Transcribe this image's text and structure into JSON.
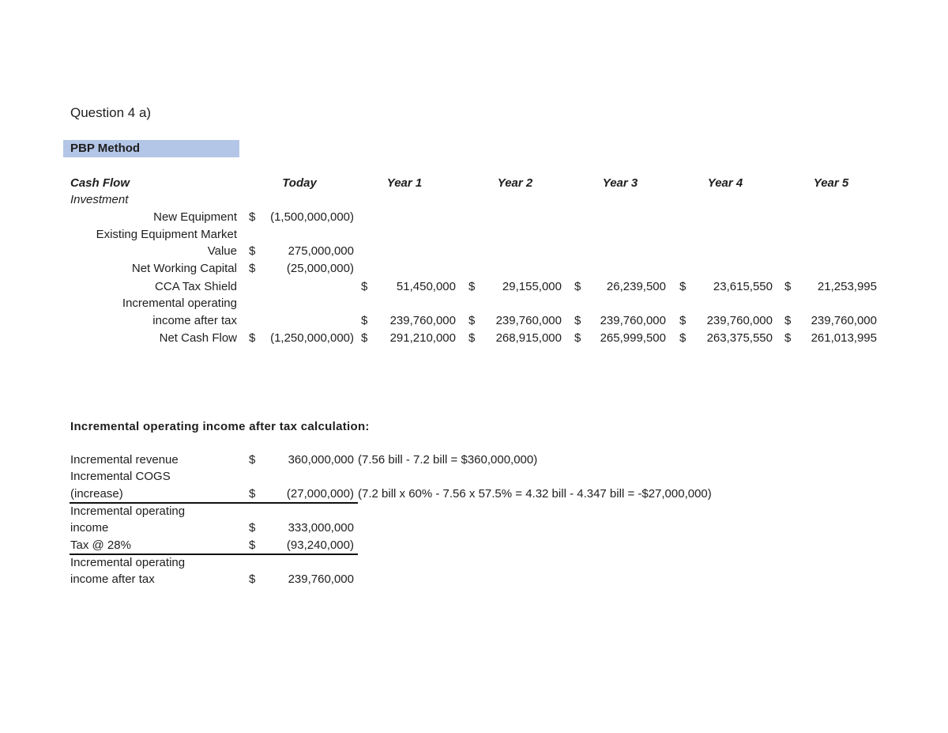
{
  "title": "Question 4 a)",
  "section": "PBP Method",
  "cash_flow": {
    "headers": [
      "Cash Flow",
      "Today",
      "Year 1",
      "Year 2",
      "Year 3",
      "Year 4",
      "Year 5"
    ],
    "group_label": "Investment",
    "rows": [
      {
        "label": [
          "New Equipment"
        ],
        "cells": [
          [
            "$",
            "(1,500,000,000)"
          ]
        ]
      },
      {
        "label": [
          "Existing Equipment Market",
          "Value"
        ],
        "cells": [
          [
            "$",
            "275,000,000"
          ]
        ]
      },
      {
        "label": [
          "Net Working Capital"
        ],
        "cells": [
          [
            "$",
            "(25,000,000)"
          ]
        ]
      },
      {
        "label": [
          "CCA Tax Shield"
        ],
        "cells": [
          null,
          [
            "$",
            "51,450,000"
          ],
          [
            "$",
            "29,155,000"
          ],
          [
            "$",
            "26,239,500"
          ],
          [
            "$",
            "23,615,550"
          ],
          [
            "$",
            "21,253,995"
          ]
        ]
      },
      {
        "label": [
          "Incremental operating",
          "income after tax"
        ],
        "cells": [
          null,
          [
            "$",
            "239,760,000"
          ],
          [
            "$",
            "239,760,000"
          ],
          [
            "$",
            "239,760,000"
          ],
          [
            "$",
            "239,760,000"
          ],
          [
            "$",
            "239,760,000"
          ]
        ]
      },
      {
        "label": [
          "Net Cash Flow"
        ],
        "cells": [
          [
            "$",
            "(1,250,000,000)"
          ],
          [
            "$",
            "291,210,000"
          ],
          [
            "$",
            "268,915,000"
          ],
          [
            "$",
            "265,999,500"
          ],
          [
            "$",
            "263,375,550"
          ],
          [
            "$",
            "261,013,995"
          ]
        ]
      }
    ]
  },
  "calc": {
    "heading": "Incremental operating income after tax calculation:",
    "rows": [
      {
        "label": [
          "Incremental revenue"
        ],
        "currency": "$",
        "value": "360,000,000",
        "note": "(7.56 bill - 7.2 bill = $360,000,000)"
      },
      {
        "label": [
          "Incremental COGS",
          "(increase)"
        ],
        "currency": "$",
        "value": "(27,000,000)",
        "note": "(7.2 bill x 60% - 7.56 x 57.5% = 4.32 bill - 4.347 bill = -$27,000,000)",
        "underline": true
      },
      {
        "label": [
          "Incremental operating",
          "income"
        ],
        "currency": "$",
        "value": "333,000,000"
      },
      {
        "label": [
          "Tax @ 28%"
        ],
        "currency": "$",
        "value": "(93,240,000)",
        "underline": true
      },
      {
        "label": [
          "Incremental operating",
          "income after tax"
        ],
        "currency": "$",
        "value": "239,760,000"
      }
    ]
  }
}
